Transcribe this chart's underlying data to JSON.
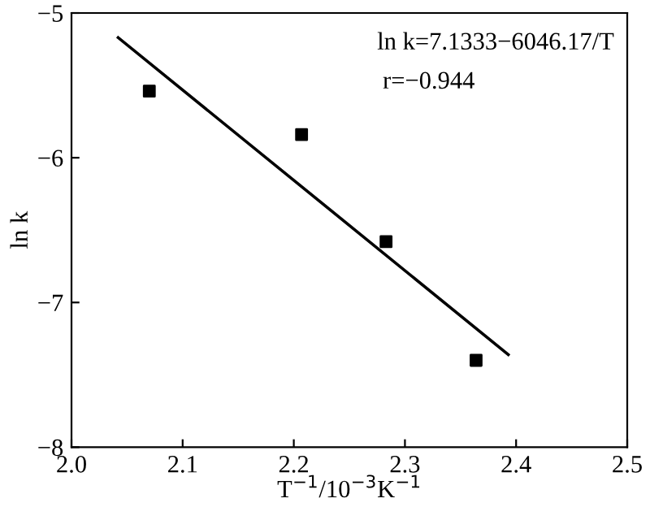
{
  "chart_data": {
    "type": "scatter",
    "xlabel": "T$^{−1}$/10$^{−3}$K$^{−1}$",
    "ylabel": "ln k",
    "x": [
      2.07,
      2.207,
      2.283,
      2.364
    ],
    "series": [
      {
        "color": "#000000",
        "marker": "square",
        "values": [
          -5.54,
          -5.84,
          -6.58,
          -7.4
        ]
      },
      {
        "type": "line",
        "color": "#000000",
        "marker": "none",
        "line_style": "solid",
        "x": [
          2.042,
          2.393
        ],
        "values": [
          -5.17,
          -7.36
        ]
      }
    ],
    "annotations": [
      "ln k=7.1333−6046.17/T",
      "r=−0.944"
    ],
    "xlim": [
      2.0,
      2.5
    ],
    "xticks": [
      {
        "value": 2.0,
        "label": "2.0"
      },
      2.1,
      2.2,
      2.3,
      2.4,
      {
        "value": 2.5,
        "label": "2.5"
      }
    ],
    "ylim": [
      -8,
      -5
    ],
    "yticks": [
      -8,
      -7,
      -6,
      -5
    ],
    "grid": false,
    "legend": false
  }
}
